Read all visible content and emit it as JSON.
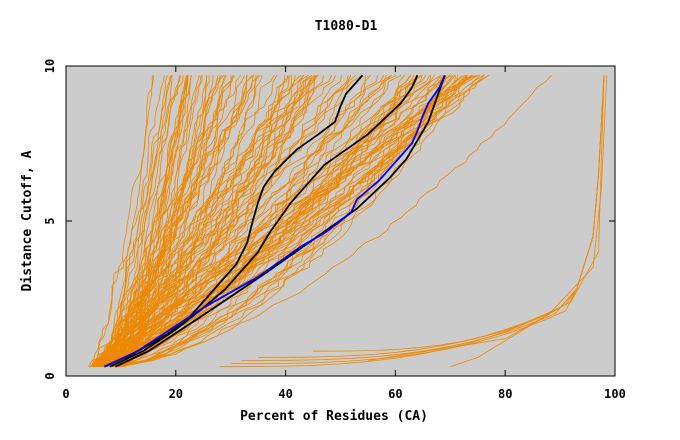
{
  "chart_data": {
    "type": "line",
    "title": "T1080-D1",
    "xlabel": "Percent of Residues (CA)",
    "ylabel": "Distance Cutoff, A",
    "xlim": [
      0,
      100
    ],
    "ylim": [
      0,
      10
    ],
    "xticks": [
      "0",
      "20",
      "40",
      "60",
      "80",
      "100"
    ],
    "yticks": [
      "0",
      "5",
      "10"
    ],
    "grid": false,
    "legend": "none",
    "colors": {
      "background": "#cccccc",
      "bundle": "#ee8800",
      "highlight_black": "#000000",
      "highlight_blue": "#0000ff"
    },
    "series": [
      {
        "color": "#000000",
        "x": [
          7,
          12,
          18,
          22,
          25,
          28,
          31,
          33,
          34,
          35,
          36,
          38,
          42,
          46,
          49,
          50,
          51,
          53,
          54
        ],
        "y": [
          0.3,
          0.7,
          1.3,
          1.8,
          2.4,
          3.0,
          3.6,
          4.3,
          5.0,
          5.6,
          6.1,
          6.6,
          7.3,
          7.8,
          8.2,
          8.7,
          9.1,
          9.5,
          9.7
        ]
      },
      {
        "color": "#000000",
        "x": [
          8,
          14,
          20,
          25,
          29,
          32,
          35,
          37,
          39,
          41,
          44,
          47,
          51,
          55,
          58,
          61,
          63,
          64
        ],
        "y": [
          0.3,
          0.8,
          1.5,
          2.2,
          2.8,
          3.4,
          4.0,
          4.6,
          5.1,
          5.6,
          6.2,
          6.8,
          7.3,
          7.8,
          8.3,
          8.8,
          9.3,
          9.7
        ]
      },
      {
        "color": "#000000",
        "x": [
          9,
          15,
          21,
          27,
          32,
          37,
          41,
          45,
          49,
          53,
          56,
          59,
          62,
          64,
          66,
          67,
          68,
          69
        ],
        "y": [
          0.3,
          0.8,
          1.5,
          2.2,
          2.8,
          3.4,
          3.9,
          4.4,
          4.9,
          5.4,
          5.9,
          6.4,
          7.0,
          7.6,
          8.2,
          8.7,
          9.2,
          9.7
        ]
      },
      {
        "color": "#0000ff",
        "x": [
          7,
          13,
          19,
          25,
          30,
          35,
          39,
          43,
          47,
          50,
          52,
          53,
          55,
          57,
          59,
          61,
          63,
          64,
          65,
          66,
          68,
          69
        ],
        "y": [
          0.3,
          0.8,
          1.5,
          2.2,
          2.7,
          3.2,
          3.7,
          4.2,
          4.6,
          5.0,
          5.3,
          5.7,
          6.0,
          6.3,
          6.7,
          7.1,
          7.5,
          7.9,
          8.4,
          8.8,
          9.3,
          9.7
        ]
      }
    ]
  }
}
